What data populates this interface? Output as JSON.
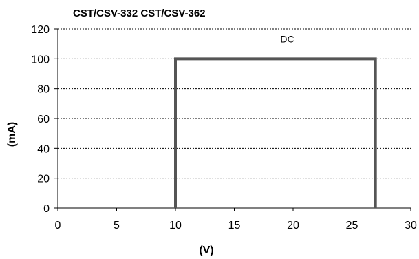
{
  "chart_data": {
    "type": "line",
    "title": "CST/CSV-332 CST/CSV-362",
    "xlabel": "(V)",
    "ylabel": "(mA)",
    "xlim": [
      0,
      30
    ],
    "ylim": [
      0,
      120
    ],
    "xticks": [
      0,
      5,
      10,
      15,
      20,
      25,
      30
    ],
    "yticks": [
      0,
      20,
      40,
      60,
      80,
      100,
      120
    ],
    "grid": "horizontal-dotted",
    "series": [
      {
        "color": "#555555",
        "x": [
          10,
          10,
          27,
          27
        ],
        "y": [
          0,
          100,
          100,
          0
        ]
      }
    ],
    "annotations": [
      {
        "text": "DC",
        "x": 19.5,
        "y": 110
      }
    ]
  }
}
